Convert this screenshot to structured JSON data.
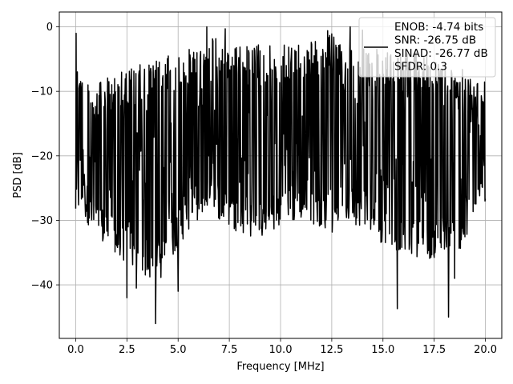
{
  "chart_data": {
    "type": "line",
    "title": "",
    "xlabel": "Frequency [MHz]",
    "ylabel": "PSD [dB]",
    "xlim": [
      -0.8,
      20.8
    ],
    "ylim": [
      -48.3,
      2.3
    ],
    "x_ticks": [
      0.0,
      2.5,
      5.0,
      7.5,
      10.0,
      12.5,
      15.0,
      17.5,
      20.0
    ],
    "x_tick_labels": [
      "0.0",
      "2.5",
      "5.0",
      "7.5",
      "10.0",
      "12.5",
      "15.0",
      "17.5",
      "20.0"
    ],
    "y_ticks": [
      0,
      -10,
      -20,
      -30,
      -40
    ],
    "y_tick_labels": [
      "0",
      "−10",
      "−20",
      "−30",
      "−40"
    ],
    "grid": true,
    "legend": {
      "position": "top-right",
      "entries": [
        "ENOB: -4.74 bits",
        "SNR: -26.75 dB",
        "SINAD: -26.77 dB",
        "SFDR: 0.3"
      ]
    },
    "series": [
      {
        "color": "#000000",
        "points_per_mhz": 50,
        "x_range": [
          0,
          20
        ],
        "envelope": {
          "x": [
            0,
            0.05,
            0.1,
            0.2,
            0.5,
            1,
            2,
            3,
            4,
            5,
            6,
            6.5,
            7,
            8,
            9,
            10,
            11,
            12,
            12.5,
            13,
            14,
            14.5,
            15,
            16,
            17,
            18,
            19,
            19.5,
            20
          ],
          "upper": [
            -1,
            -1.5,
            -3,
            -6,
            -8,
            -9,
            -7,
            -6,
            -5,
            -4,
            -3,
            -1,
            -2,
            -3,
            -2.5,
            -3,
            -2,
            -2,
            -1,
            -3,
            -2,
            -3,
            -4,
            -4,
            -4,
            -5,
            -6,
            -8,
            -8
          ],
          "lower": [
            -30,
            -29,
            -29,
            -29,
            -30,
            -33,
            -36,
            -38,
            -40,
            -34,
            -30,
            -29,
            -30,
            -32,
            -33,
            -31,
            -30,
            -31,
            -32,
            -30,
            -31,
            -32,
            -34,
            -35,
            -36,
            -36,
            -34,
            -30,
            -28
          ]
        },
        "deep_dips": [
          {
            "x": 2.5,
            "y": -42
          },
          {
            "x": 2.95,
            "y": -40.5
          },
          {
            "x": 3.9,
            "y": -46
          },
          {
            "x": 5.0,
            "y": -41
          },
          {
            "x": 15.7,
            "y": -43.7
          },
          {
            "x": 18.2,
            "y": -45
          },
          {
            "x": 18.5,
            "y": -39
          }
        ],
        "peaks": [
          {
            "x": 0.02,
            "y": -1
          },
          {
            "x": 6.4,
            "y": 0
          },
          {
            "x": 7.3,
            "y": -0.3
          },
          {
            "x": 12.3,
            "y": -0.6
          },
          {
            "x": 13.4,
            "y": 0
          },
          {
            "x": 14.0,
            "y": -0.5
          }
        ]
      }
    ]
  }
}
